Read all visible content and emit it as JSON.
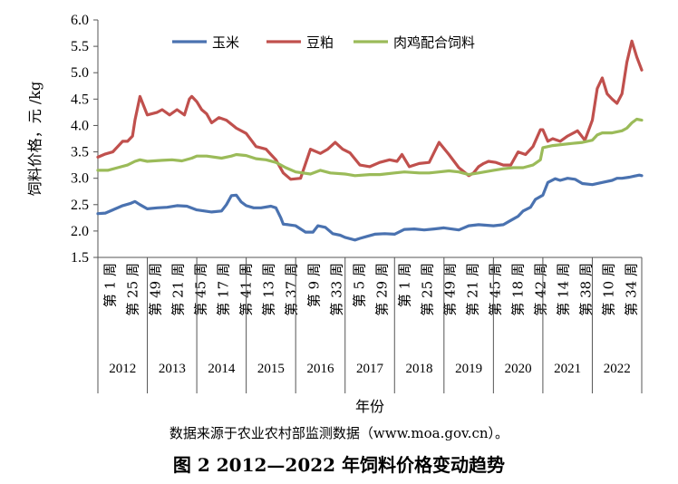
{
  "chart_data": {
    "type": "line",
    "title": "",
    "xlabel": "年份",
    "ylabel": "饲料价格，元 /kg",
    "ylim": [
      1.5,
      6.0
    ],
    "yticks": [
      "1.5",
      "2.0",
      "2.5",
      "3.0",
      "3.5",
      "4.0",
      "4.5",
      "5.0",
      "5.5",
      "6.0"
    ],
    "years": [
      "2012",
      "2013",
      "2014",
      "2015",
      "2016",
      "2017",
      "2018",
      "2019",
      "2020",
      "2021",
      "2022"
    ],
    "week_labels": [
      "第 1 周",
      "第 25 周",
      "第 49 周",
      "第 21 周",
      "第 45 周",
      "第 17 周",
      "第 41 周",
      "第 13 周",
      "第 37 周",
      "第 9 周",
      "第 33 周",
      "第 5 周",
      "第 29 周",
      "第 1 周",
      "第 25 周",
      "第 49 周",
      "第 21 周",
      "第 45 周",
      "第 18 周",
      "第 42 周",
      "第 14 周",
      "第 38 周",
      "第 10 周",
      "第 34 周"
    ],
    "x_range": [
      0,
      11.0
    ],
    "series": [
      {
        "name": "玉米",
        "color": "#4a72b0",
        "x": [
          0,
          0.15,
          0.3,
          0.5,
          0.65,
          0.75,
          0.85,
          1.0,
          1.2,
          1.4,
          1.6,
          1.8,
          2.0,
          2.3,
          2.5,
          2.6,
          2.7,
          2.8,
          2.9,
          3.0,
          3.15,
          3.3,
          3.5,
          3.6,
          3.7,
          3.75,
          3.85,
          4.0,
          4.1,
          4.2,
          4.35,
          4.45,
          4.6,
          4.75,
          4.9,
          5.0,
          5.2,
          5.3,
          5.45,
          5.6,
          5.8,
          6.0,
          6.2,
          6.4,
          6.6,
          6.8,
          7.0,
          7.3,
          7.5,
          7.7,
          8.0,
          8.2,
          8.35,
          8.5,
          8.6,
          8.75,
          8.85,
          9.0,
          9.1,
          9.25,
          9.35,
          9.5,
          9.65,
          9.8,
          10.0,
          10.2,
          10.4,
          10.5,
          10.6,
          10.75,
          10.85,
          10.95,
          11.0
        ],
        "values": [
          2.33,
          2.34,
          2.4,
          2.48,
          2.52,
          2.56,
          2.5,
          2.42,
          2.44,
          2.45,
          2.48,
          2.47,
          2.4,
          2.36,
          2.38,
          2.5,
          2.67,
          2.68,
          2.55,
          2.48,
          2.44,
          2.44,
          2.47,
          2.44,
          2.25,
          2.13,
          2.12,
          2.1,
          2.04,
          1.98,
          1.98,
          2.1,
          2.07,
          1.95,
          1.92,
          1.88,
          1.83,
          1.86,
          1.9,
          1.94,
          1.95,
          1.94,
          2.03,
          2.04,
          2.02,
          2.04,
          2.06,
          2.02,
          2.1,
          2.12,
          2.1,
          2.12,
          2.2,
          2.28,
          2.38,
          2.45,
          2.6,
          2.68,
          2.92,
          2.99,
          2.96,
          3.0,
          2.98,
          2.9,
          2.88,
          2.92,
          2.96,
          3.0,
          3.0,
          3.02,
          3.04,
          3.06,
          3.05
        ]
      },
      {
        "name": "豆粕",
        "color": "#c0504d",
        "x": [
          0,
          0.15,
          0.3,
          0.5,
          0.6,
          0.7,
          0.75,
          0.85,
          1.0,
          1.2,
          1.3,
          1.45,
          1.6,
          1.75,
          1.85,
          1.9,
          2.0,
          2.1,
          2.2,
          2.3,
          2.45,
          2.6,
          2.8,
          3.0,
          3.2,
          3.4,
          3.5,
          3.6,
          3.75,
          3.9,
          4.1,
          4.3,
          4.5,
          4.65,
          4.8,
          4.95,
          5.1,
          5.3,
          5.5,
          5.7,
          5.9,
          6.05,
          6.15,
          6.3,
          6.5,
          6.7,
          6.9,
          7.1,
          7.3,
          7.5,
          7.6,
          7.7,
          7.8,
          7.9,
          8.05,
          8.2,
          8.35,
          8.5,
          8.65,
          8.8,
          8.95,
          9.0,
          9.1,
          9.2,
          9.35,
          9.5,
          9.7,
          9.85,
          10.0,
          10.1,
          10.2,
          10.3,
          10.4,
          10.5,
          10.6,
          10.7,
          10.8,
          10.9,
          11.0
        ],
        "values": [
          3.4,
          3.46,
          3.5,
          3.7,
          3.7,
          3.8,
          4.1,
          4.55,
          4.2,
          4.25,
          4.3,
          4.2,
          4.3,
          4.2,
          4.5,
          4.55,
          4.45,
          4.3,
          4.22,
          4.05,
          4.15,
          4.1,
          3.95,
          3.85,
          3.6,
          3.55,
          3.45,
          3.35,
          3.1,
          2.98,
          3.0,
          3.55,
          3.47,
          3.55,
          3.68,
          3.55,
          3.48,
          3.25,
          3.22,
          3.3,
          3.35,
          3.32,
          3.45,
          3.22,
          3.28,
          3.3,
          3.68,
          3.45,
          3.2,
          3.05,
          3.1,
          3.22,
          3.28,
          3.32,
          3.3,
          3.25,
          3.25,
          3.5,
          3.45,
          3.6,
          3.92,
          3.92,
          3.7,
          3.75,
          3.7,
          3.8,
          3.9,
          3.72,
          4.1,
          4.7,
          4.9,
          4.6,
          4.5,
          4.42,
          4.6,
          5.2,
          5.6,
          5.3,
          5.05
        ]
      },
      {
        "name": "肉鸡配合饲料",
        "color": "#9bbb59",
        "x": [
          0,
          0.2,
          0.4,
          0.6,
          0.75,
          0.85,
          1.0,
          1.3,
          1.5,
          1.7,
          1.9,
          2.0,
          2.2,
          2.5,
          2.7,
          2.8,
          3.0,
          3.2,
          3.4,
          3.6,
          3.8,
          4.0,
          4.3,
          4.5,
          4.7,
          5.0,
          5.2,
          5.5,
          5.7,
          6.0,
          6.2,
          6.5,
          6.7,
          6.9,
          7.1,
          7.3,
          7.5,
          7.7,
          8.0,
          8.2,
          8.4,
          8.6,
          8.8,
          8.95,
          9.0,
          9.2,
          9.4,
          9.6,
          9.8,
          10.0,
          10.1,
          10.2,
          10.4,
          10.6,
          10.7,
          10.8,
          10.9,
          11.0
        ],
        "values": [
          3.15,
          3.15,
          3.2,
          3.25,
          3.32,
          3.35,
          3.32,
          3.34,
          3.35,
          3.33,
          3.38,
          3.42,
          3.42,
          3.38,
          3.42,
          3.45,
          3.43,
          3.37,
          3.35,
          3.3,
          3.2,
          3.12,
          3.08,
          3.15,
          3.1,
          3.08,
          3.05,
          3.07,
          3.07,
          3.1,
          3.12,
          3.1,
          3.1,
          3.12,
          3.14,
          3.12,
          3.07,
          3.1,
          3.15,
          3.18,
          3.2,
          3.2,
          3.25,
          3.35,
          3.58,
          3.62,
          3.64,
          3.66,
          3.68,
          3.72,
          3.82,
          3.86,
          3.86,
          3.9,
          3.95,
          4.05,
          4.12,
          4.1
        ]
      }
    ],
    "legend": "top",
    "grid": false
  },
  "source_note": "数据来源于农业农村部监测数据（www.moa.gov.cn）。",
  "caption": "图 2  2012—2022 年饲料价格变动趋势"
}
